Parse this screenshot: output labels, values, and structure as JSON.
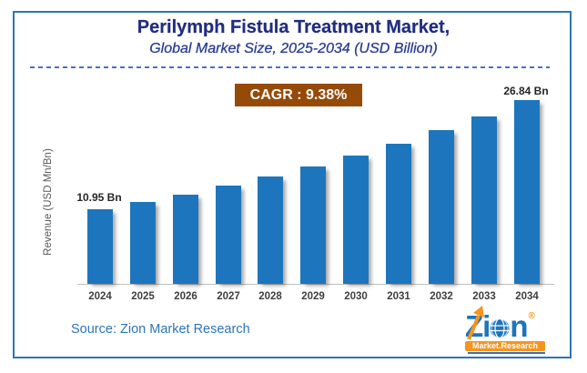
{
  "header": {
    "title": "Perilymph Fistula Treatment Market,",
    "subtitle": "Global Market Size, 2025-2034 (USD Billion)",
    "title_color": "#222E7E",
    "subtitle_color": "#2A3F94"
  },
  "cagr_badge": {
    "label": "CAGR : 9.38%",
    "bg_color": "#964A08",
    "text_color": "#FFFFFF"
  },
  "chart_data": {
    "type": "bar",
    "title": "Perilymph Fistula Treatment Market, Global Market Size, 2025-2034 (USD Billion)",
    "categories": [
      "2024",
      "2025",
      "2026",
      "2027",
      "2028",
      "2029",
      "2030",
      "2031",
      "2032",
      "2033",
      "2034"
    ],
    "values": [
      10.95,
      11.98,
      13.1,
      14.33,
      15.67,
      17.14,
      18.75,
      20.51,
      22.43,
      24.54,
      26.84
    ],
    "unit": "USD Bn",
    "ylabel": "Revenue (USD Mn/Bn)",
    "xlabel": "",
    "ylim": [
      0,
      28
    ],
    "grid": false,
    "legend": false,
    "bar_color": "#1D76BD",
    "cagr_percent": "9.38%",
    "first_bar_label": "10.95 Bn",
    "last_bar_label": "26.84 Bn"
  },
  "footer": {
    "source": "Source: Zion Market Research",
    "logo": {
      "part1": "Zi",
      "part2": "n",
      "banner": "Market.Research",
      "registered": "®"
    }
  }
}
